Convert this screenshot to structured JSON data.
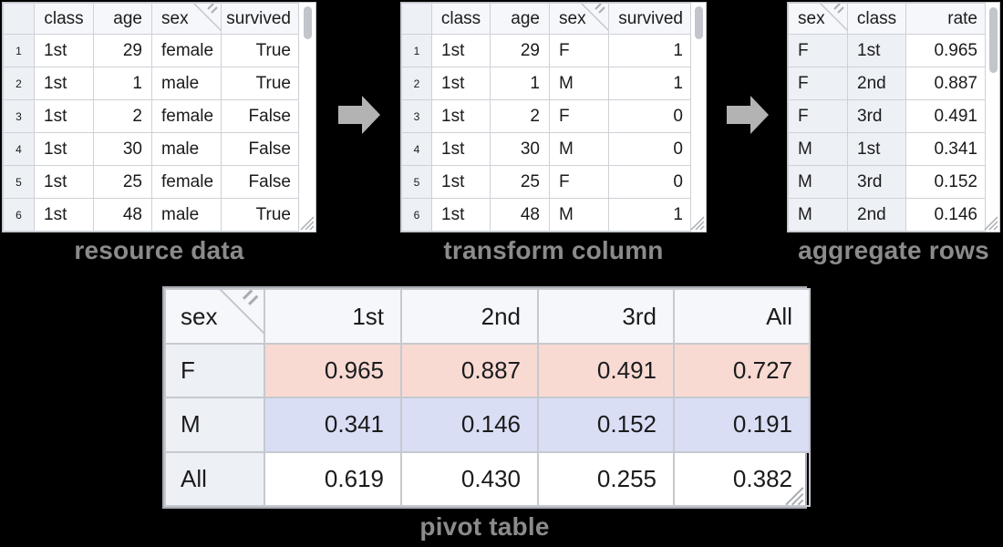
{
  "colors": {
    "canvas": "#000000",
    "red": "#e8493a",
    "blue": "#4a6ce0",
    "pink_bg": "#f8dad3",
    "blue_bg": "#d9def4",
    "hdr_bg": "#f5f7fa",
    "idx_bg": "#edf0f5",
    "border": "#ced1d7",
    "outer": "#bfc2c8",
    "border_big": "#c6c9cf",
    "outer_big": "#a8abb1",
    "text": "#1b1b1d",
    "row_index": "#a3a8b1",
    "label": "#8b8b8b",
    "arrow": "#b3b3b3",
    "fold_line": "#c3c7cd",
    "grip_line": "#a9adb3"
  },
  "stage_labels": {
    "resource": "resource data",
    "transform": "transform column",
    "aggregate": "aggregate rows",
    "pivot": "pivot table"
  },
  "icons": {
    "arrow_right": "block right arrow",
    "fold_corner": "folded corner with double tick on sex header",
    "resize_grip": "diagonal resize grip lines",
    "scrollbar_thumb": "vertical scrollbar thumb"
  },
  "tables": {
    "resource": {
      "title": "resource data",
      "columns": [
        {
          "label": "",
          "role": "index"
        },
        {
          "label": "class",
          "halign": "ac",
          "align": "al"
        },
        {
          "label": "age",
          "halign": "ar",
          "align": "ar"
        },
        {
          "label": "sex",
          "halign": "al",
          "align": "al",
          "fold": true
        },
        {
          "label": "survived",
          "halign": "ar",
          "align": "ar"
        }
      ],
      "rows": [
        [
          "1",
          "1st",
          "29",
          {
            "t": "female",
            "s": "red"
          },
          "True"
        ],
        [
          "2",
          "1st",
          "1",
          {
            "t": "male",
            "s": "blue"
          },
          "True"
        ],
        [
          "3",
          "1st",
          "2",
          {
            "t": "female",
            "s": "red"
          },
          "False"
        ],
        [
          "4",
          "1st",
          "30",
          {
            "t": "male",
            "s": "blue"
          },
          "False"
        ],
        [
          "5",
          "1st",
          "25",
          {
            "t": "female",
            "s": "red"
          },
          "False"
        ],
        [
          "6",
          "1st",
          "48",
          {
            "t": "male",
            "s": "blue"
          },
          "True"
        ]
      ]
    },
    "transform": {
      "title": "transform column",
      "columns": [
        {
          "label": "",
          "role": "index"
        },
        {
          "label": "class",
          "halign": "ac",
          "align": "al"
        },
        {
          "label": "age",
          "halign": "ar",
          "align": "ar"
        },
        {
          "label": "sex",
          "halign": "al",
          "align": "al",
          "fold": true
        },
        {
          "label": "survived",
          "halign": "ar",
          "align": "ar"
        }
      ],
      "rows": [
        [
          "1",
          "1st",
          "29",
          {
            "t": "F",
            "s": "red"
          },
          "1"
        ],
        [
          "2",
          "1st",
          "1",
          {
            "t": "M",
            "s": "blue"
          },
          "1"
        ],
        [
          "3",
          "1st",
          "2",
          {
            "t": "F",
            "s": "red"
          },
          "0"
        ],
        [
          "4",
          "1st",
          "30",
          {
            "t": "M",
            "s": "blue"
          },
          "0"
        ],
        [
          "5",
          "1st",
          "25",
          {
            "t": "F",
            "s": "red"
          },
          "0"
        ],
        [
          "6",
          "1st",
          "48",
          {
            "t": "M",
            "s": "blue"
          },
          "1"
        ]
      ]
    },
    "aggregate": {
      "title": "aggregate rows",
      "columns": [
        {
          "label": "sex",
          "halign": "al",
          "align": "al",
          "fold": true
        },
        {
          "label": "class",
          "halign": "ac",
          "align": "al"
        },
        {
          "label": "rate",
          "halign": "ar",
          "align": "ar"
        }
      ],
      "rows": [
        [
          {
            "t": "F",
            "s": "red idx"
          },
          {
            "t": "1st",
            "s": "idx"
          },
          "0.965"
        ],
        [
          {
            "t": "F",
            "s": "red idx"
          },
          {
            "t": "2nd",
            "s": "idx"
          },
          "0.887"
        ],
        [
          {
            "t": "F",
            "s": "red idx"
          },
          {
            "t": "3rd",
            "s": "idx"
          },
          "0.491"
        ],
        [
          {
            "t": "M",
            "s": "blue idx"
          },
          {
            "t": "1st",
            "s": "idx"
          },
          "0.341"
        ],
        [
          {
            "t": "M",
            "s": "blue idx"
          },
          {
            "t": "3rd",
            "s": "idx"
          },
          "0.152"
        ],
        [
          {
            "t": "M",
            "s": "blue idx"
          },
          {
            "t": "2nd",
            "s": "idx"
          },
          "0.146"
        ]
      ]
    },
    "pivot": {
      "title": "pivot table",
      "columns": [
        {
          "label": "sex",
          "halign": "al",
          "align": "al",
          "fold": true
        },
        {
          "label": "1st",
          "halign": "ar",
          "align": "ar"
        },
        {
          "label": "2nd",
          "halign": "ar",
          "align": "ar"
        },
        {
          "label": "3rd",
          "halign": "ar",
          "align": "ar"
        },
        {
          "label": "All",
          "halign": "ar",
          "align": "ar"
        }
      ],
      "rows": [
        [
          {
            "t": "F",
            "s": "red idx"
          },
          {
            "t": "0.965",
            "s": "red pink"
          },
          {
            "t": "0.887",
            "s": "red pink"
          },
          {
            "t": "0.491",
            "s": "red pink"
          },
          {
            "t": "0.727",
            "s": "red pink"
          }
        ],
        [
          {
            "t": "M",
            "s": "blue idx"
          },
          {
            "t": "0.341",
            "s": "blue lav"
          },
          {
            "t": "0.146",
            "s": "blue lav"
          },
          {
            "t": "0.152",
            "s": "blue lav"
          },
          {
            "t": "0.191",
            "s": "blue lav"
          }
        ],
        [
          {
            "t": "All",
            "s": "idx"
          },
          "0.619",
          "0.430",
          "0.255",
          "0.382"
        ]
      ]
    }
  }
}
